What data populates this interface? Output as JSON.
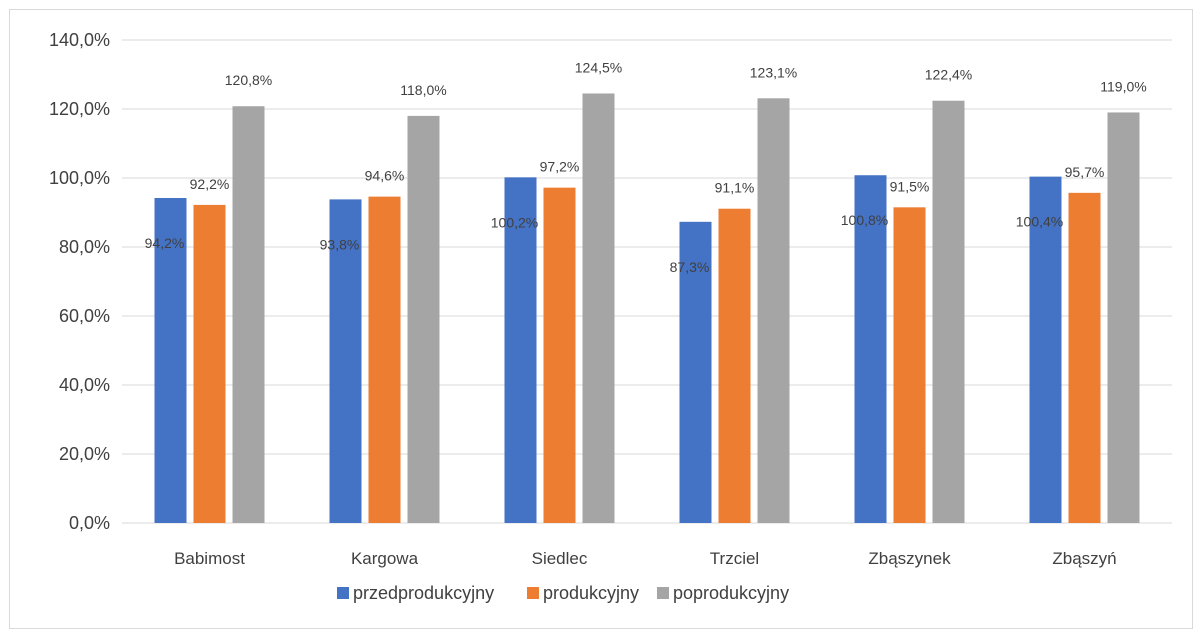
{
  "chart_data": {
    "type": "bar",
    "categories": [
      "Babimost",
      "Kargowa",
      "Siedlec",
      "Trzciel",
      "Zbąszynek",
      "Zbąszyń"
    ],
    "series": [
      {
        "name": "przedprodukcyjny",
        "color": "#4472c4",
        "values": [
          94.2,
          93.8,
          100.2,
          87.3,
          100.8,
          100.4
        ],
        "labels": [
          "94,2%",
          "93,8%",
          "100,2%",
          "87,3%",
          "100,8%",
          "100,4%"
        ]
      },
      {
        "name": "produkcyjny",
        "color": "#ed7d31",
        "values": [
          92.2,
          94.6,
          97.2,
          91.1,
          91.5,
          95.7
        ],
        "labels": [
          "92,2%",
          "94,6%",
          "97,2%",
          "91,1%",
          "91,5%",
          "95,7%"
        ]
      },
      {
        "name": "poprodukcyjny",
        "color": "#a5a5a5",
        "values": [
          120.8,
          118.0,
          124.5,
          123.1,
          122.4,
          119.0
        ],
        "labels": [
          "120,8%",
          "118,0%",
          "124,5%",
          "123,1%",
          "122,4%",
          "119,0%"
        ]
      }
    ],
    "ylim": [
      0,
      140
    ],
    "yticks": [
      0,
      20,
      40,
      60,
      80,
      100,
      120,
      140
    ],
    "ytick_labels": [
      "0,0%",
      "20,0%",
      "40,0%",
      "60,0%",
      "80,0%",
      "100,0%",
      "120,0%",
      "140,0%"
    ],
    "grid": true,
    "legend_position": "bottom",
    "gridline_color": "#d9d9d9"
  }
}
